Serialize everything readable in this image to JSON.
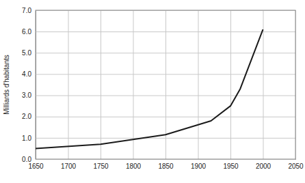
{
  "chart_data": {
    "type": "line",
    "y_label": "Milliards d'habitants",
    "x": [
      1650,
      1750,
      1850,
      1920,
      1950,
      1965,
      2000
    ],
    "values": [
      0.5,
      0.7,
      1.15,
      1.8,
      2.5,
      3.3,
      6.1
    ],
    "color": "#1a1a1a",
    "xlim": [
      1650,
      2050
    ],
    "xticks": [
      1650,
      1700,
      1750,
      1800,
      1850,
      1900,
      1950,
      2000,
      2050
    ],
    "ylim": [
      0,
      7
    ],
    "yticks": [
      {
        "value": 0,
        "label": "0.0"
      },
      {
        "value": 1,
        "label": "1.0"
      },
      {
        "value": 2,
        "label": "2.0"
      },
      {
        "value": 3,
        "label": "3.0"
      },
      {
        "value": 4,
        "label": "4.0"
      },
      {
        "value": 5,
        "label": "5.0"
      },
      {
        "value": 6,
        "label": "6.0"
      },
      {
        "value": 7,
        "label": "7.0"
      }
    ],
    "grid": true
  }
}
